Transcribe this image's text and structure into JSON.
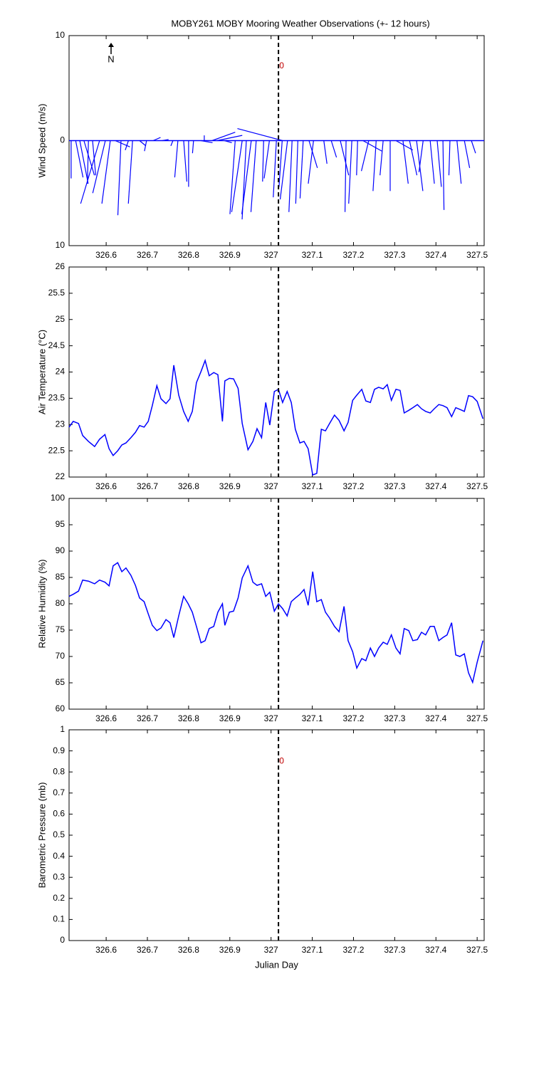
{
  "chart_data": [
    {
      "type": "feather",
      "title": "MOBY261 MOBY Mooring Weather Observations (+- 12 hours)",
      "ylabel": "Wind Speed (m/s)",
      "color": "#0000ff",
      "north_label": "N",
      "annotation": {
        "text": "0",
        "x": 327.02,
        "y": 7.1
      },
      "vline": 327.018,
      "xlim": [
        326.51,
        327.517
      ],
      "xticks": [
        326.6,
        326.7,
        326.8,
        326.9,
        327,
        327.1,
        327.2,
        327.3,
        327.4,
        327.5
      ],
      "ylim": [
        -10,
        10
      ],
      "yticks": [
        {
          "value": -10,
          "label": "10"
        },
        0,
        {
          "value": 10,
          "label": "10"
        }
      ],
      "x": [
        326.515,
        326.526,
        326.536,
        326.546,
        326.557,
        326.567,
        326.584,
        326.598,
        326.61,
        326.622,
        326.636,
        326.654,
        326.664,
        326.681,
        326.698,
        326.714,
        326.736,
        326.762,
        326.774,
        326.788,
        326.8,
        326.812,
        326.83,
        326.838,
        326.857,
        326.869,
        326.887,
        326.913,
        326.93,
        326.94,
        326.952,
        326.964,
        326.982,
        326.996,
        327.013,
        327.027,
        327.028,
        327.04,
        327.051,
        327.065,
        327.078,
        327.092,
        327.103,
        327.128,
        327.146,
        327.168,
        327.182,
        327.196,
        327.21,
        327.223,
        327.237,
        327.255,
        327.272,
        327.289,
        327.303,
        327.32,
        327.336,
        327.353,
        327.369,
        327.386,
        327.403,
        327.417,
        327.434,
        327.451,
        327.469,
        327.486
      ],
      "u": [
        0,
        0.7,
        0.8,
        1,
        -0.1,
        0.3,
        -1.8,
        -1.2,
        -0.8,
        1.4,
        -0.3,
        -0.3,
        -0.4,
        0.6,
        -0.2,
        0.7,
        0.6,
        -0.2,
        -0.3,
        0.3,
        0,
        -0.1,
        1.1,
        0,
        2.2,
        2.4,
        0.7,
        -0.5,
        -1,
        -0.4,
        -0.9,
        -0.5,
        -0.1,
        -0.5,
        -0.3,
        -0.3,
        -4.3,
        -0.7,
        -0.3,
        -0.2,
        -0.3,
        0.8,
        -0.5,
        0.3,
        0.5,
        0.8,
        -0.1,
        -0.3,
        -0.1,
        1.8,
        -0.7,
        -0.3,
        -0.3,
        0,
        1.6,
        0.5,
        0.7,
        0.6,
        -0.4,
        0.4,
        0.4,
        0.1,
        -0.1,
        0.4,
        0.5,
        0.4
      ],
      "v": [
        -3.6,
        -3.5,
        -4.1,
        -3.3,
        -4.1,
        -3.3,
        -6,
        -5,
        -6,
        -0.6,
        -7.1,
        -0.9,
        -6,
        -0.5,
        -1,
        0.3,
        0.1,
        -0.5,
        -3.5,
        -3.9,
        -4.4,
        -1.2,
        -0.2,
        0.5,
        0.8,
        0.5,
        -0.2,
        -7,
        -6.8,
        -7.5,
        -7,
        -6.8,
        -3.9,
        -3.6,
        -5.4,
        -4.4,
        1.15,
        -5.6,
        -6.8,
        -6,
        -5.5,
        -2.6,
        -4.1,
        -2.2,
        -1.6,
        -3.3,
        -6.8,
        -6,
        -3.3,
        -1,
        -2.9,
        -4.8,
        -3.3,
        -4.8,
        -0.9,
        -4.1,
        -3.3,
        -4.8,
        -3,
        -4.1,
        -4.4,
        -6.6,
        -3.3,
        -4.1,
        -2.6,
        -1.2
      ]
    },
    {
      "type": "line",
      "ylabel": "Air Temperature (°C)",
      "color": "#0000ff",
      "vline": 327.018,
      "xlim": [
        326.51,
        327.517
      ],
      "xticks": [
        326.6,
        326.7,
        326.8,
        326.9,
        327,
        327.1,
        327.2,
        327.3,
        327.4,
        327.5
      ],
      "ylim": [
        22,
        26
      ],
      "yticks": [
        22,
        22.5,
        23,
        23.5,
        24,
        24.5,
        25,
        25.5,
        26
      ],
      "x": [
        326.51,
        326.52,
        326.533,
        326.543,
        326.557,
        326.572,
        326.584,
        326.597,
        326.607,
        326.617,
        326.628,
        326.638,
        326.648,
        326.66,
        326.671,
        326.681,
        326.692,
        326.702,
        326.712,
        326.723,
        326.733,
        326.745,
        326.755,
        326.764,
        326.776,
        326.788,
        326.799,
        326.809,
        326.819,
        326.83,
        326.84,
        326.85,
        326.861,
        326.871,
        326.882,
        326.888,
        326.899,
        326.909,
        326.92,
        326.93,
        326.944,
        326.956,
        326.966,
        326.977,
        326.987,
        326.997,
        327.008,
        327.018,
        327.028,
        327.039,
        327.049,
        327.059,
        327.07,
        327.08,
        327.09,
        327.101,
        327.111,
        327.122,
        327.132,
        327.142,
        327.154,
        327.165,
        327.177,
        327.187,
        327.198,
        327.208,
        327.22,
        327.23,
        327.241,
        327.251,
        327.261,
        327.272,
        327.282,
        327.292,
        327.303,
        327.313,
        327.323,
        327.334,
        327.344,
        327.355,
        327.365,
        327.375,
        327.386,
        327.396,
        327.407,
        327.417,
        327.427,
        327.438,
        327.448,
        327.458,
        327.469,
        327.479,
        327.489,
        327.5,
        327.514
      ],
      "values": [
        22.95,
        23.06,
        23.02,
        22.79,
        22.68,
        22.58,
        22.72,
        22.81,
        22.54,
        22.41,
        22.5,
        22.61,
        22.65,
        22.75,
        22.85,
        22.98,
        22.95,
        23.06,
        23.36,
        23.74,
        23.49,
        23.4,
        23.49,
        24.13,
        23.56,
        23.25,
        23.06,
        23.25,
        23.8,
        24.01,
        24.22,
        23.93,
        23.99,
        23.95,
        23.06,
        23.83,
        23.88,
        23.87,
        23.69,
        23.02,
        22.52,
        22.68,
        22.92,
        22.75,
        23.42,
        22.99,
        23.63,
        23.67,
        23.42,
        23.63,
        23.42,
        22.91,
        22.65,
        22.68,
        22.54,
        22.04,
        22.07,
        22.91,
        22.88,
        23.02,
        23.18,
        23.08,
        22.88,
        23.04,
        23.46,
        23.56,
        23.67,
        23.45,
        23.42,
        23.67,
        23.71,
        23.68,
        23.76,
        23.46,
        23.67,
        23.65,
        23.22,
        23.27,
        23.32,
        23.38,
        23.3,
        23.25,
        23.22,
        23.3,
        23.38,
        23.36,
        23.32,
        23.15,
        23.32,
        23.29,
        23.25,
        23.55,
        23.53,
        23.44,
        23.11
      ]
    },
    {
      "type": "line",
      "ylabel": "Relative Humidity (%)",
      "color": "#0000ff",
      "vline": 327.018,
      "xlim": [
        326.51,
        327.517
      ],
      "xticks": [
        326.6,
        326.7,
        326.8,
        326.9,
        327,
        327.1,
        327.2,
        327.3,
        327.4,
        327.5
      ],
      "ylim": [
        60,
        100
      ],
      "yticks": [
        60,
        65,
        70,
        75,
        80,
        85,
        90,
        95,
        100
      ],
      "x": [
        326.51,
        326.52,
        326.533,
        326.543,
        326.557,
        326.572,
        326.584,
        326.597,
        326.607,
        326.617,
        326.628,
        326.638,
        326.648,
        326.66,
        326.671,
        326.681,
        326.692,
        326.702,
        326.712,
        326.723,
        326.733,
        326.745,
        326.755,
        326.764,
        326.776,
        326.788,
        326.799,
        326.809,
        326.819,
        326.83,
        326.84,
        326.85,
        326.861,
        326.871,
        326.882,
        326.888,
        326.899,
        326.909,
        326.92,
        326.93,
        326.944,
        326.956,
        326.966,
        326.977,
        326.987,
        326.997,
        327.008,
        327.018,
        327.028,
        327.039,
        327.049,
        327.059,
        327.07,
        327.08,
        327.09,
        327.101,
        327.111,
        327.122,
        327.132,
        327.142,
        327.154,
        327.165,
        327.177,
        327.187,
        327.198,
        327.208,
        327.22,
        327.23,
        327.241,
        327.251,
        327.261,
        327.272,
        327.282,
        327.292,
        327.303,
        327.313,
        327.323,
        327.334,
        327.344,
        327.355,
        327.365,
        327.375,
        327.386,
        327.396,
        327.407,
        327.417,
        327.427,
        327.438,
        327.448,
        327.458,
        327.469,
        327.479,
        327.489,
        327.5,
        327.514
      ],
      "values": [
        81.4,
        81.8,
        82.4,
        84.5,
        84.3,
        83.8,
        84.5,
        84.1,
        83.4,
        87.2,
        87.8,
        86.1,
        86.8,
        85.4,
        83.5,
        81.1,
        80.4,
        78.1,
        75.9,
        74.9,
        75.4,
        77,
        76.4,
        73.6,
        77.7,
        81.4,
        80,
        78.4,
        75.7,
        72.6,
        73,
        75.3,
        75.7,
        78.4,
        80,
        75.9,
        78.4,
        78.6,
        81.1,
        84.9,
        87.2,
        84.1,
        83.5,
        83.8,
        81.4,
        82.2,
        78.6,
        80,
        79.1,
        77.7,
        80.4,
        81.1,
        81.8,
        82.7,
        79.7,
        86.1,
        80.4,
        80.8,
        78.4,
        77.3,
        75.7,
        74.7,
        79.5,
        73,
        70.9,
        67.8,
        69.6,
        69.2,
        71.6,
        70,
        71.6,
        72.7,
        72.3,
        74.1,
        71.6,
        70.5,
        75.3,
        74.9,
        73,
        73.2,
        74.6,
        74.1,
        75.7,
        75.7,
        73,
        73.6,
        74.1,
        76.4,
        70.3,
        70,
        70.5,
        66.9,
        65.1,
        68.9,
        73
      ]
    },
    {
      "type": "line",
      "ylabel": "Barometric Pressure (mb)",
      "xlabel": "Julian Day",
      "color": "#0000ff",
      "vline": 327.018,
      "annotation": {
        "text": "0",
        "x": 327.02,
        "y": 0.85
      },
      "xlim": [
        326.51,
        327.517
      ],
      "xticks": [
        326.6,
        326.7,
        326.8,
        326.9,
        327,
        327.1,
        327.2,
        327.3,
        327.4,
        327.5
      ],
      "ylim": [
        0,
        1
      ],
      "yticks": [
        0,
        0.1,
        0.2,
        0.3,
        0.4,
        0.5,
        0.6,
        0.7,
        0.8,
        0.9,
        1
      ]
    }
  ]
}
